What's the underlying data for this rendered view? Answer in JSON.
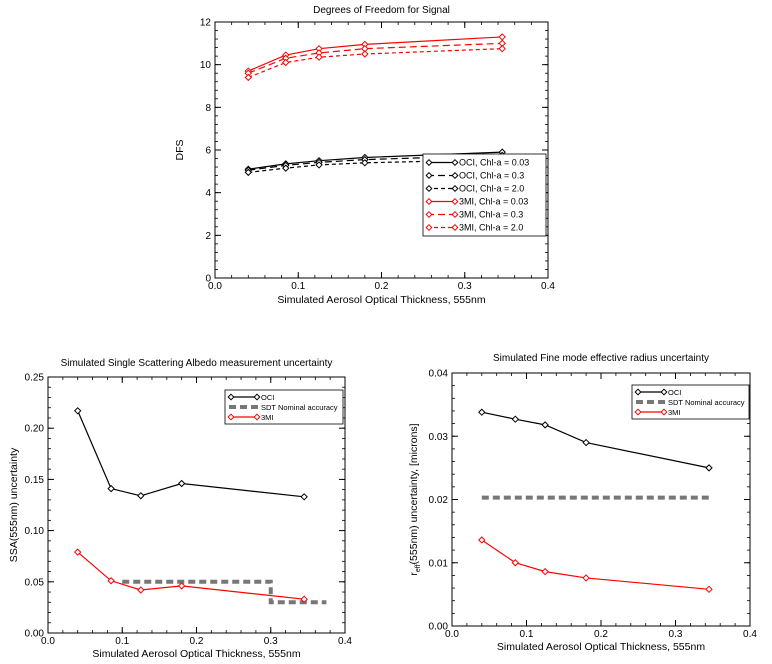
{
  "chart_data": [
    {
      "type": "line",
      "title": "Degrees of Freedom for Signal",
      "xlabel": "Simulated Aerosol Optical Thickness, 555nm",
      "ylabel": "DFS",
      "xlim": [
        0.0,
        0.4
      ],
      "ylim": [
        0,
        12
      ],
      "xticks": [
        0.0,
        0.1,
        0.2,
        0.3,
        0.4
      ],
      "xtick_labels": [
        "0.0",
        "0.1",
        "0.2",
        "0.3",
        "0.4"
      ],
      "yticks": [
        0,
        2,
        4,
        6,
        8,
        10,
        12
      ],
      "ytick_labels": [
        "0",
        "2",
        "4",
        "6",
        "8",
        "10",
        "12"
      ],
      "legend_position": "lower-right",
      "series": [
        {
          "name": "OCI, Chl-a = 0.03",
          "color": "#000000",
          "dash": "solid",
          "x": [
            0.04,
            0.085,
            0.125,
            0.18,
            0.345
          ],
          "y": [
            5.1,
            5.35,
            5.5,
            5.65,
            5.9
          ]
        },
        {
          "name": "OCI, Chl-a = 0.3",
          "color": "#000000",
          "dash": "longdash",
          "x": [
            0.04,
            0.085,
            0.125,
            0.18,
            0.345
          ],
          "y": [
            5.05,
            5.28,
            5.42,
            5.55,
            5.75
          ]
        },
        {
          "name": "OCI, Chl-a = 2.0",
          "color": "#000000",
          "dash": "dash",
          "x": [
            0.04,
            0.085,
            0.125,
            0.18,
            0.345
          ],
          "y": [
            4.95,
            5.15,
            5.3,
            5.4,
            5.55
          ]
        },
        {
          "name": "3MI, Chl-a = 0.03",
          "color": "#ff0000",
          "dash": "solid",
          "x": [
            0.04,
            0.085,
            0.125,
            0.18,
            0.345
          ],
          "y": [
            9.7,
            10.45,
            10.75,
            10.95,
            11.3
          ]
        },
        {
          "name": "3MI, Chl-a = 0.3",
          "color": "#ff0000",
          "dash": "longdash",
          "x": [
            0.04,
            0.085,
            0.125,
            0.18,
            0.345
          ],
          "y": [
            9.6,
            10.3,
            10.55,
            10.75,
            11.0
          ]
        },
        {
          "name": "3MI, Chl-a = 2.0",
          "color": "#ff0000",
          "dash": "dash",
          "x": [
            0.04,
            0.085,
            0.125,
            0.18,
            0.345
          ],
          "y": [
            9.4,
            10.1,
            10.35,
            10.5,
            10.75
          ]
        }
      ]
    },
    {
      "type": "line",
      "title": "Simulated Single Scattering Albedo measurement uncertainty",
      "xlabel": "Simulated Aerosol Optical Thickness, 555nm",
      "ylabel": "SSA(555nm) uncertainty",
      "xlim": [
        0.0,
        0.4
      ],
      "ylim": [
        0.0,
        0.25
      ],
      "xticks": [
        0.0,
        0.1,
        0.2,
        0.3,
        0.4
      ],
      "xtick_labels": [
        "0.0",
        "0.1",
        "0.2",
        "0.3",
        "0.4"
      ],
      "yticks": [
        0.0,
        0.05,
        0.1,
        0.15,
        0.2,
        0.25
      ],
      "ytick_labels": [
        "0.00",
        "0.05",
        "0.10",
        "0.15",
        "0.20",
        "0.25"
      ],
      "legend_position": "top-right",
      "series": [
        {
          "name": "OCI",
          "color": "#000000",
          "dash": "solid",
          "marker": "diamond",
          "x": [
            0.04,
            0.085,
            0.125,
            0.18,
            0.345
          ],
          "y": [
            0.217,
            0.141,
            0.134,
            0.146,
            0.133
          ]
        },
        {
          "name": "SDT Nominal accuracy",
          "color": "#777777",
          "dash": "thickdash",
          "marker": "none",
          "x": [
            0.1,
            0.3,
            0.3,
            0.375
          ],
          "y": [
            0.05,
            0.05,
            0.03,
            0.03
          ]
        },
        {
          "name": "3MI",
          "color": "#ff0000",
          "dash": "solid",
          "marker": "diamond",
          "x": [
            0.04,
            0.085,
            0.125,
            0.18,
            0.345
          ],
          "y": [
            0.079,
            0.051,
            0.042,
            0.046,
            0.033
          ]
        }
      ]
    },
    {
      "type": "line",
      "title": "Simulated Fine mode effective radius uncertainty",
      "xlabel": "Simulated Aerosol Optical Thickness, 555nm",
      "ylabel": "r_eff(555nm) uncertainty, [microns]",
      "ylabel_main": "r",
      "ylabel_sub": "eff",
      "ylabel_rest": "(555nm) uncertainty, [microns]",
      "xlim": [
        0.0,
        0.4
      ],
      "ylim": [
        0.0,
        0.04
      ],
      "xticks": [
        0.0,
        0.1,
        0.2,
        0.3,
        0.4
      ],
      "xtick_labels": [
        "0.0",
        "0.1",
        "0.2",
        "0.3",
        "0.4"
      ],
      "yticks": [
        0.0,
        0.01,
        0.02,
        0.03,
        0.04
      ],
      "ytick_labels": [
        "0.00",
        "0.01",
        "0.02",
        "0.03",
        "0.04"
      ],
      "legend_position": "top-right",
      "series": [
        {
          "name": "OCI",
          "color": "#000000",
          "dash": "solid",
          "marker": "diamond",
          "x": [
            0.04,
            0.085,
            0.125,
            0.18,
            0.345
          ],
          "y": [
            0.0338,
            0.0327,
            0.0318,
            0.029,
            0.025
          ]
        },
        {
          "name": "SDT Nominal accuracy",
          "color": "#777777",
          "dash": "thickdash",
          "marker": "none",
          "x": [
            0.04,
            0.345
          ],
          "y": [
            0.0203,
            0.0203
          ]
        },
        {
          "name": "3MI",
          "color": "#ff0000",
          "dash": "solid",
          "marker": "diamond",
          "x": [
            0.04,
            0.085,
            0.125,
            0.18,
            0.345
          ],
          "y": [
            0.0136,
            0.01,
            0.0086,
            0.0076,
            0.0058
          ]
        }
      ]
    }
  ]
}
